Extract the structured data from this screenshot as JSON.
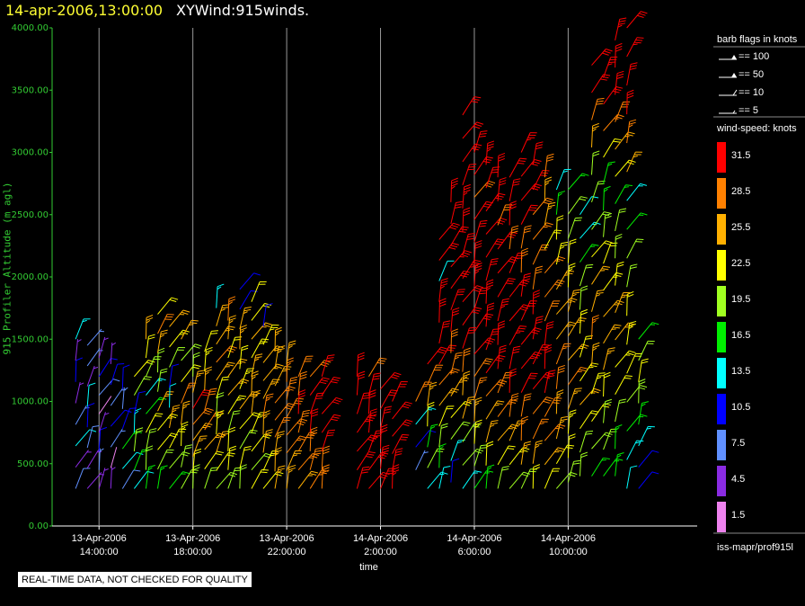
{
  "header": {
    "date_time": "14-apr-2006,13:00:00",
    "plot_name": "XYWind:915winds."
  },
  "notice": "REAL-TIME DATA, NOT CHECKED FOR QUALITY",
  "legend": {
    "barb_title": "barb flags in knots",
    "barb_items": [
      {
        "label": "== 100",
        "flag": "pennant"
      },
      {
        "label": "== 50",
        "flag": "pennant"
      },
      {
        "label": "== 10",
        "flag": "full"
      },
      {
        "label": "== 5",
        "flag": "half"
      }
    ],
    "speed_title": "wind-speed: knots",
    "footer": "iss-mapr/prof915l"
  },
  "chart_data": {
    "type": "scatter",
    "subtype": "wind-barb time-height",
    "title": "14-apr-2006,13:00:00  XYWind:915winds.",
    "xlabel": "time",
    "ylabel": "915 Profiler Altitude (m agl)",
    "x_range": [
      "2006-04-13T12:00",
      "2006-04-14T15:30"
    ],
    "ylim": [
      0,
      4000
    ],
    "x_ticks": [
      {
        "line1": "13-Apr-2006",
        "line2": "14:00:00",
        "hours": 2
      },
      {
        "line1": "13-Apr-2006",
        "line2": "18:00:00",
        "hours": 6
      },
      {
        "line1": "13-Apr-2006",
        "line2": "22:00:00",
        "hours": 10
      },
      {
        "line1": "14-Apr-2006",
        "line2": "2:00:00",
        "hours": 14
      },
      {
        "line1": "14-Apr-2006",
        "line2": "6:00:00",
        "hours": 18
      },
      {
        "line1": "14-Apr-2006",
        "line2": "10:00:00",
        "hours": 22
      }
    ],
    "y_ticks": [
      "0.00",
      "500.00",
      "1000.00",
      "1500.00",
      "2000.00",
      "2500.00",
      "3000.00",
      "3500.00",
      "4000.00"
    ],
    "y_tick_values": [
      0,
      500,
      1000,
      1500,
      2000,
      2500,
      3000,
      3500,
      4000
    ],
    "grid": "vertical lines at x ticks",
    "colorbar": {
      "label": "wind-speed: knots",
      "levels": [
        "31.5",
        "28.5",
        "25.5",
        "22.5",
        "19.5",
        "16.5",
        "13.5",
        "10.5",
        "7.5",
        "4.5",
        "1.5"
      ],
      "colors": [
        "#ff0000",
        "#ff8000",
        "#ffb000",
        "#ffff00",
        "#a0ff20",
        "#00ee00",
        "#00ffff",
        "#0000ff",
        "#6090ff",
        "#8a2be2",
        "#ee82ee"
      ]
    },
    "profiles": [
      {
        "hours": 1.0,
        "ymin": 300,
        "ymax": 1500,
        "speeds": [
          8,
          4,
          12,
          6,
          3,
          9,
          5,
          14
        ]
      },
      {
        "hours": 1.5,
        "ymin": 300,
        "ymax": 1450,
        "speeds": [
          5,
          3,
          8,
          10,
          12,
          4,
          7,
          6
        ]
      },
      {
        "hours": 2.0,
        "ymin": 300,
        "ymax": 1350,
        "speeds": [
          3,
          6,
          9,
          4,
          2,
          8,
          11,
          5
        ]
      },
      {
        "hours": 2.5,
        "ymin": 300,
        "ymax": 1300,
        "speeds": [
          4,
          2,
          7,
          10,
          6,
          9,
          3
        ]
      },
      {
        "hours": 3.0,
        "ymin": 300,
        "ymax": 1100,
        "speeds": [
          8,
          12,
          15,
          10,
          6,
          9
        ]
      },
      {
        "hours": 3.5,
        "ymin": 300,
        "ymax": 1200,
        "speeds": [
          12,
          16,
          18,
          14,
          10,
          19,
          22
        ]
      },
      {
        "hours": 4.0,
        "ymin": 300,
        "ymax": 1500,
        "speeds": [
          15,
          18,
          20,
          22,
          17,
          14,
          19,
          21,
          24
        ]
      },
      {
        "hours": 4.5,
        "ymin": 300,
        "ymax": 1700,
        "speeds": [
          16,
          18,
          21,
          23,
          25,
          20,
          18,
          26,
          28,
          22
        ]
      },
      {
        "hours": 5.0,
        "ymin": 300,
        "ymax": 1600,
        "speeds": [
          17,
          19,
          22,
          24,
          12,
          9,
          20,
          23,
          25
        ]
      },
      {
        "hours": 5.5,
        "ymin": 300,
        "ymax": 1500,
        "speeds": [
          18,
          20,
          23,
          25,
          27,
          22,
          19,
          24
        ]
      },
      {
        "hours": 6.0,
        "ymin": 300,
        "ymax": 1200,
        "speeds": [
          19,
          21,
          24,
          26,
          28,
          30,
          25,
          20
        ]
      },
      {
        "hours": 6.5,
        "ymin": 300,
        "ymax": 1400,
        "speeds": [
          20,
          22,
          25,
          27,
          29,
          26,
          23,
          21
        ]
      },
      {
        "hours": 7.0,
        "ymin": 300,
        "ymax": 1750,
        "speeds": [
          18,
          21,
          24,
          23,
          20,
          22,
          25,
          28,
          26,
          24,
          13
        ]
      },
      {
        "hours": 7.5,
        "ymin": 300,
        "ymax": 1650,
        "speeds": [
          20,
          22,
          21,
          19,
          23,
          25,
          24,
          22,
          26,
          27
        ]
      },
      {
        "hours": 8.0,
        "ymin": 300,
        "ymax": 1900,
        "speeds": [
          19,
          22,
          20,
          21,
          24,
          23,
          22,
          25,
          26,
          11,
          10
        ]
      },
      {
        "hours": 8.5,
        "ymin": 300,
        "ymax": 1800,
        "speeds": [
          21,
          20,
          22,
          23,
          24,
          26,
          25,
          23,
          24,
          22,
          21
        ]
      },
      {
        "hours": 9.0,
        "ymin": 300,
        "ymax": 1600,
        "speeds": [
          22,
          23,
          24,
          25,
          27,
          26,
          25,
          24,
          23,
          10
        ]
      },
      {
        "hours": 9.5,
        "ymin": 300,
        "ymax": 1400,
        "speeds": [
          24,
          25,
          26,
          27,
          28,
          27,
          26,
          25,
          24
        ]
      },
      {
        "hours": 10.0,
        "ymin": 300,
        "ymax": 1300,
        "speeds": [
          25,
          26,
          27,
          28,
          29,
          28,
          27,
          26
        ]
      },
      {
        "hours": 10.5,
        "ymin": 300,
        "ymax": 1200,
        "speeds": [
          26,
          27,
          28,
          29,
          30,
          29,
          28
        ]
      },
      {
        "hours": 11.0,
        "ymin": 300,
        "ymax": 1200,
        "speeds": [
          27,
          28,
          29,
          30,
          31,
          30,
          29
        ]
      },
      {
        "hours": 11.5,
        "ymin": 300,
        "ymax": 1200,
        "speeds": [
          28,
          29,
          30,
          31,
          32,
          31,
          30
        ]
      },
      {
        "hours": 13.0,
        "ymin": 300,
        "ymax": 1200,
        "speeds": [
          30,
          31,
          32,
          33,
          32,
          31,
          30
        ]
      },
      {
        "hours": 13.5,
        "ymin": 300,
        "ymax": 1200,
        "speeds": [
          31,
          32,
          33,
          32,
          31,
          30,
          29
        ]
      },
      {
        "hours": 14.0,
        "ymin": 300,
        "ymax": 1100,
        "speeds": [
          32,
          33,
          32,
          31,
          30,
          31
        ]
      },
      {
        "hours": 14.5,
        "ymin": 300,
        "ymax": 1000,
        "speeds": [
          33,
          32,
          31,
          30,
          32,
          31
        ]
      },
      {
        "hours": 15.5,
        "ymin": 450,
        "ymax": 1000,
        "speeds": [
          6,
          9,
          13,
          27
        ]
      },
      {
        "hours": 16.0,
        "ymin": 300,
        "ymax": 1300,
        "speeds": [
          14,
          18,
          16,
          21,
          24,
          28,
          31
        ]
      },
      {
        "hours": 16.5,
        "ymin": 300,
        "ymax": 2300,
        "speeds": [
          12,
          16,
          20,
          22,
          25,
          27,
          30,
          31,
          32,
          33,
          12,
          31,
          32
        ]
      },
      {
        "hours": 17.0,
        "ymin": 350,
        "ymax": 2600,
        "speeds": [
          10,
          14,
          18,
          22,
          24,
          27,
          29,
          30,
          32,
          31,
          33,
          31,
          32,
          33
        ]
      },
      {
        "hours": 17.5,
        "ymin": 300,
        "ymax": 3300,
        "speeds": [
          14,
          18,
          20,
          24,
          26,
          28,
          30,
          31,
          32,
          33,
          32,
          31,
          33,
          32,
          31,
          30,
          32
        ]
      },
      {
        "hours": 18.0,
        "ymin": 300,
        "ymax": 3000,
        "speeds": [
          16,
          20,
          23,
          25,
          27,
          29,
          30,
          31,
          32,
          33,
          32,
          31,
          30,
          29,
          31,
          32
        ]
      },
      {
        "hours": 18.5,
        "ymin": 300,
        "ymax": 2900,
        "speeds": [
          17,
          21,
          24,
          26,
          28,
          30,
          31,
          32,
          33,
          32,
          31,
          30,
          31,
          32,
          33
        ]
      },
      {
        "hours": 19.0,
        "ymin": 300,
        "ymax": 2800,
        "speeds": [
          18,
          22,
          25,
          27,
          29,
          31,
          32,
          33,
          32,
          31,
          30,
          29,
          30,
          31
        ]
      },
      {
        "hours": 19.5,
        "ymin": 300,
        "ymax": 2800,
        "speeds": [
          19,
          23,
          26,
          28,
          30,
          32,
          33,
          32,
          31,
          30,
          29,
          30,
          31,
          32
        ]
      },
      {
        "hours": 20.0,
        "ymin": 300,
        "ymax": 3000,
        "speeds": [
          20,
          24,
          27,
          29,
          31,
          33,
          32,
          31,
          30,
          29,
          28,
          30,
          31,
          32,
          33
        ]
      },
      {
        "hours": 20.5,
        "ymin": 300,
        "ymax": 2900,
        "speeds": [
          21,
          24,
          27,
          29,
          31,
          32,
          31,
          30,
          29,
          28,
          27,
          29,
          30,
          31
        ]
      },
      {
        "hours": 21.0,
        "ymin": 300,
        "ymax": 2800,
        "speeds": [
          22,
          25,
          27,
          29,
          30,
          31,
          30,
          29,
          28,
          27,
          22,
          24,
          26,
          28
        ]
      },
      {
        "hours": 21.5,
        "ymin": 300,
        "ymax": 2700,
        "speeds": [
          20,
          22,
          24,
          26,
          28,
          27,
          26,
          25,
          24,
          23,
          21,
          17,
          14
        ]
      },
      {
        "hours": 22.0,
        "ymin": 350,
        "ymax": 2700,
        "speeds": [
          19,
          21,
          23,
          25,
          27,
          26,
          25,
          24,
          23,
          22,
          20,
          18,
          16
        ]
      },
      {
        "hours": 22.5,
        "ymin": 400,
        "ymax": 2500,
        "speeds": [
          18,
          20,
          22,
          24,
          23,
          22,
          21,
          20,
          18,
          16,
          14,
          12
        ]
      },
      {
        "hours": 23.0,
        "ymin": 400,
        "ymax": 3700,
        "speeds": [
          17,
          19,
          21,
          23,
          25,
          27,
          26,
          24,
          22,
          20,
          19,
          18,
          24,
          28,
          31,
          32
        ]
      },
      {
        "hours": 23.5,
        "ymin": 400,
        "ymax": 3600,
        "speeds": [
          16,
          18,
          20,
          22,
          24,
          26,
          25,
          23,
          21,
          19,
          17,
          16,
          22,
          27,
          30,
          33
        ]
      },
      {
        "hours": 24.0,
        "ymin": 400,
        "ymax": 3900,
        "speeds": [
          15,
          17,
          19,
          21,
          23,
          25,
          24,
          22,
          20,
          18,
          16,
          22,
          26,
          29,
          31,
          32,
          33
        ]
      },
      {
        "hours": 24.5,
        "ymin": 300,
        "ymax": 4000,
        "speeds": [
          12,
          14,
          17,
          19,
          21,
          23,
          22,
          20,
          18,
          16,
          14,
          24,
          27,
          30,
          32,
          33,
          32
        ]
      },
      {
        "hours": 25.0,
        "ymin": 300,
        "ymax": 1500,
        "speeds": [
          9,
          11,
          14,
          17,
          19,
          21,
          18,
          15
        ]
      }
    ]
  }
}
